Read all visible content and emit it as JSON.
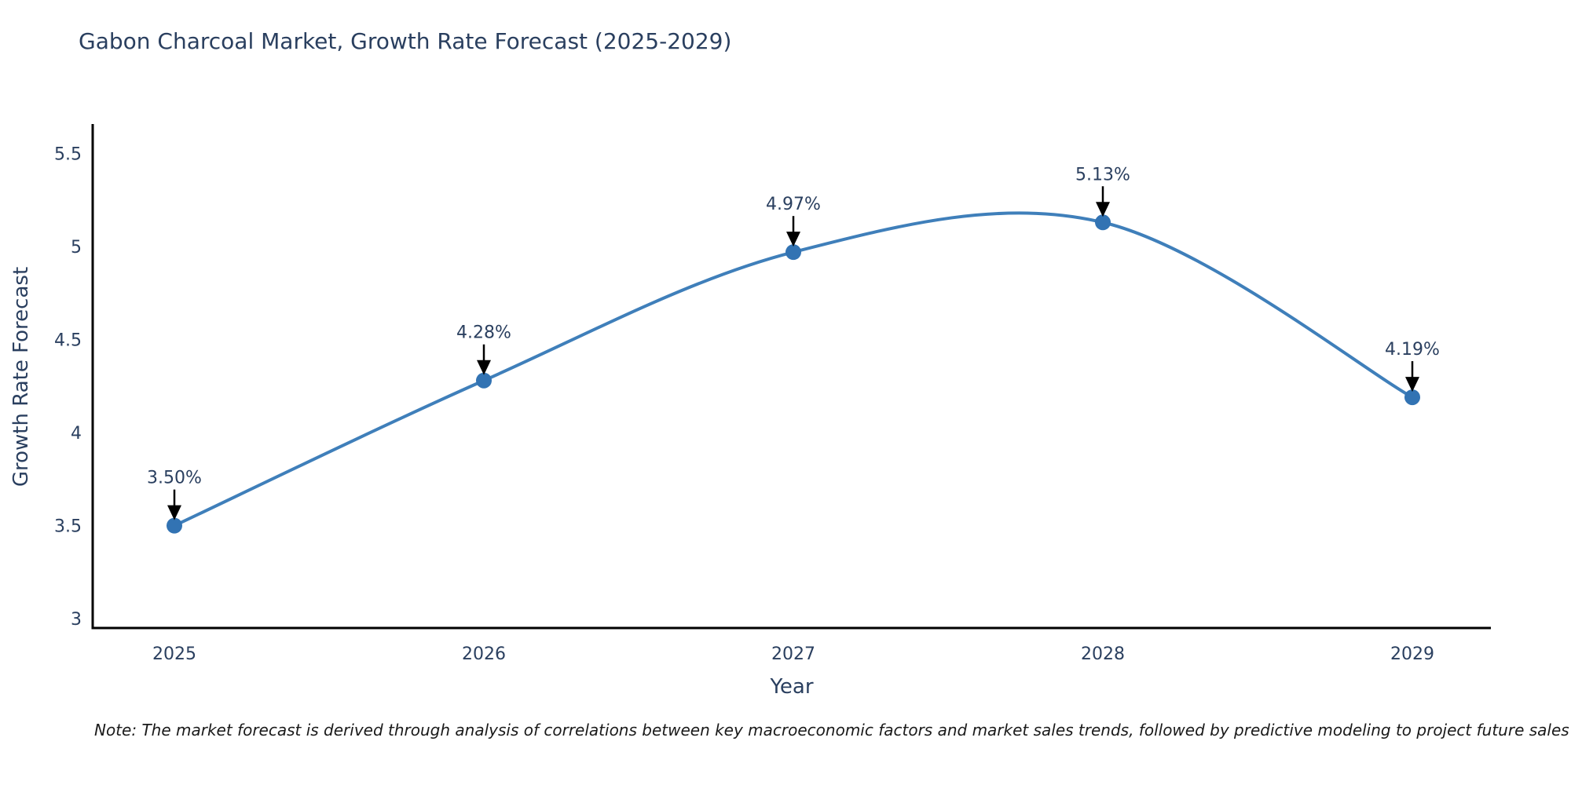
{
  "chart_data": {
    "type": "line",
    "title": "Gabon Charcoal Market, Growth Rate Forecast (2025-2029)",
    "categories": [
      "2025",
      "2026",
      "2027",
      "2028",
      "2029"
    ],
    "series": [
      {
        "name": "Growth Rate Forecast",
        "values": [
          3.5,
          4.28,
          4.97,
          5.13,
          4.19
        ]
      }
    ],
    "point_labels": [
      "3.50%",
      "4.28%",
      "4.97%",
      "5.13%",
      "4.19%"
    ],
    "xlabel": "Year",
    "ylabel": "Growth Rate Forecast",
    "ylim": [
      2.95,
      5.65
    ],
    "yticks": [
      3,
      3.5,
      4,
      4.5,
      5,
      5.5
    ],
    "ytick_labels": [
      "3",
      "3.5",
      "4",
      "4.5",
      "5",
      "5.5"
    ],
    "grid": false,
    "legend": "none",
    "line_shape": "spline",
    "colors": {
      "line": "#3f7fba",
      "marker": "#3273b3",
      "axis": "#000000",
      "text": "#2a3f5f",
      "annotation_arrow": "#000000",
      "background": "#ffffff"
    }
  },
  "note": {
    "text": "Note: The market forecast is derived through analysis of correlations between key macroeconomic factors and market sales trends, followed by predictive modeling to project future sales"
  }
}
